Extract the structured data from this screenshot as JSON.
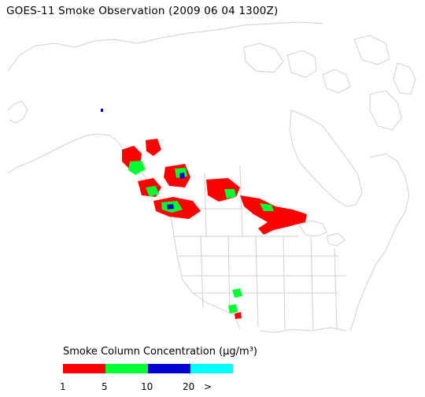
{
  "title": "GOES-11 Smoke Observation (2009 06 04  1300Z)",
  "legend": {
    "title": "Smoke Column Concentration (μg/m³)",
    "bins": [
      {
        "color": "#ff0000"
      },
      {
        "color": "#00ff33"
      },
      {
        "color": "#0000cc"
      },
      {
        "color": "#00ffff"
      }
    ],
    "ticks": [
      "1",
      "5",
      "10",
      "20",
      ">"
    ]
  },
  "colors": {
    "coastline": "#cfcfcf",
    "smoke_low": "#ff0000",
    "smoke_mid": "#00ff33",
    "smoke_high": "#0000cc",
    "smoke_max": "#00ffff"
  }
}
